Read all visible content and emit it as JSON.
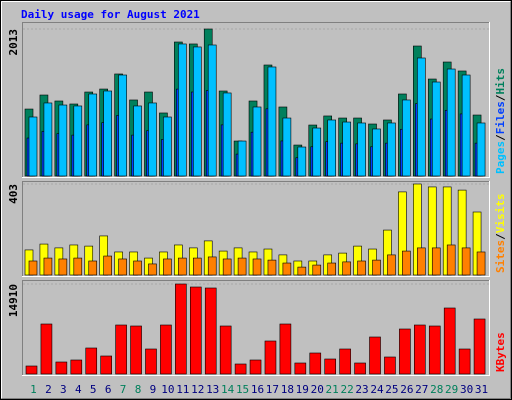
{
  "chart_data": [
    {
      "type": "bar",
      "title": "Daily usage for August 2021",
      "legend_separator": "/",
      "ylim": [
        0,
        2013
      ],
      "yticks": [
        2013
      ],
      "series": [
        {
          "name": "Hits",
          "color": "#00805c",
          "values": [
            917,
            1109,
            1027,
            986,
            1150,
            1191,
            1397,
            1041,
            1150,
            863,
            1835,
            1808,
            2013,
            1164,
            479,
            1027,
            1520,
            945,
            424,
            698,
            822,
            794,
            794,
            712,
            767,
            1123,
            1780,
            1328,
            1561,
            1438,
            835
          ]
        },
        {
          "name": "Files",
          "color": "#0040ff",
          "values": [
            520,
            610,
            580,
            560,
            700,
            730,
            830,
            560,
            620,
            500,
            1190,
            1150,
            1170,
            700,
            300,
            600,
            920,
            480,
            250,
            400,
            470,
            450,
            440,
            400,
            450,
            640,
            990,
            780,
            900,
            850,
            450
          ]
        },
        {
          "name": "Pages",
          "color": "#00c0ff",
          "values": [
            808,
            1000,
            972,
            959,
            1123,
            1164,
            1383,
            959,
            1000,
            808,
            1808,
            1767,
            1794,
            1137,
            479,
            945,
            1493,
            794,
            397,
            657,
            767,
            739,
            726,
            644,
            726,
            1041,
            1616,
            1287,
            1465,
            1383,
            726
          ]
        }
      ]
    },
    {
      "type": "bar",
      "legend_separator": "/",
      "ylim": [
        0,
        403
      ],
      "yticks": [
        403
      ],
      "series": [
        {
          "name": "Visits",
          "color": "#ffff00",
          "values": [
            111,
            137,
            120,
            133,
            128,
            173,
            102,
            102,
            75,
            102,
            133,
            120,
            151,
            106,
            120,
            102,
            115,
            89,
            62,
            62,
            89,
            97,
            128,
            115,
            199,
            368,
            403,
            390,
            390,
            376,
            279
          ]
        },
        {
          "name": "Sites",
          "color": "#ff8000",
          "values": [
            62,
            75,
            71,
            75,
            62,
            84,
            71,
            62,
            49,
            71,
            75,
            75,
            80,
            71,
            75,
            71,
            66,
            53,
            35,
            44,
            53,
            58,
            62,
            66,
            89,
            106,
            120,
            120,
            133,
            120,
            102
          ]
        }
      ]
    },
    {
      "type": "bar",
      "ylim": [
        0,
        14910
      ],
      "yticks": [
        14910
      ],
      "categories": [
        "1",
        "2",
        "3",
        "4",
        "5",
        "6",
        "7",
        "8",
        "9",
        "10",
        "11",
        "12",
        "13",
        "14",
        "15",
        "16",
        "17",
        "18",
        "19",
        "20",
        "21",
        "22",
        "23",
        "24",
        "25",
        "26",
        "27",
        "28",
        "29",
        "30",
        "31"
      ],
      "category_colors": [
        "#00805c",
        "#000080",
        "#000080",
        "#000080",
        "#000080",
        "#000080",
        "#00805c",
        "#00805c",
        "#000080",
        "#000080",
        "#000080",
        "#000080",
        "#000080",
        "#00805c",
        "#00805c",
        "#000080",
        "#000080",
        "#000080",
        "#000080",
        "#000080",
        "#00805c",
        "#00805c",
        "#000080",
        "#000080",
        "#000080",
        "#000080",
        "#000080",
        "#00805c",
        "#00805c",
        "#000080",
        "#000080"
      ],
      "series": [
        {
          "name": "KBytes",
          "color": "#ff0000",
          "values": [
            1325,
            8283,
            1988,
            2319,
            4307,
            2982,
            8117,
            7952,
            4142,
            8117,
            14910,
            14413,
            14247,
            7952,
            1657,
            2319,
            5467,
            8283,
            1822,
            3479,
            2485,
            4142,
            1822,
            6130,
            2816,
            7455,
            8117,
            7952,
            10934,
            4142,
            9112
          ]
        }
      ]
    }
  ]
}
